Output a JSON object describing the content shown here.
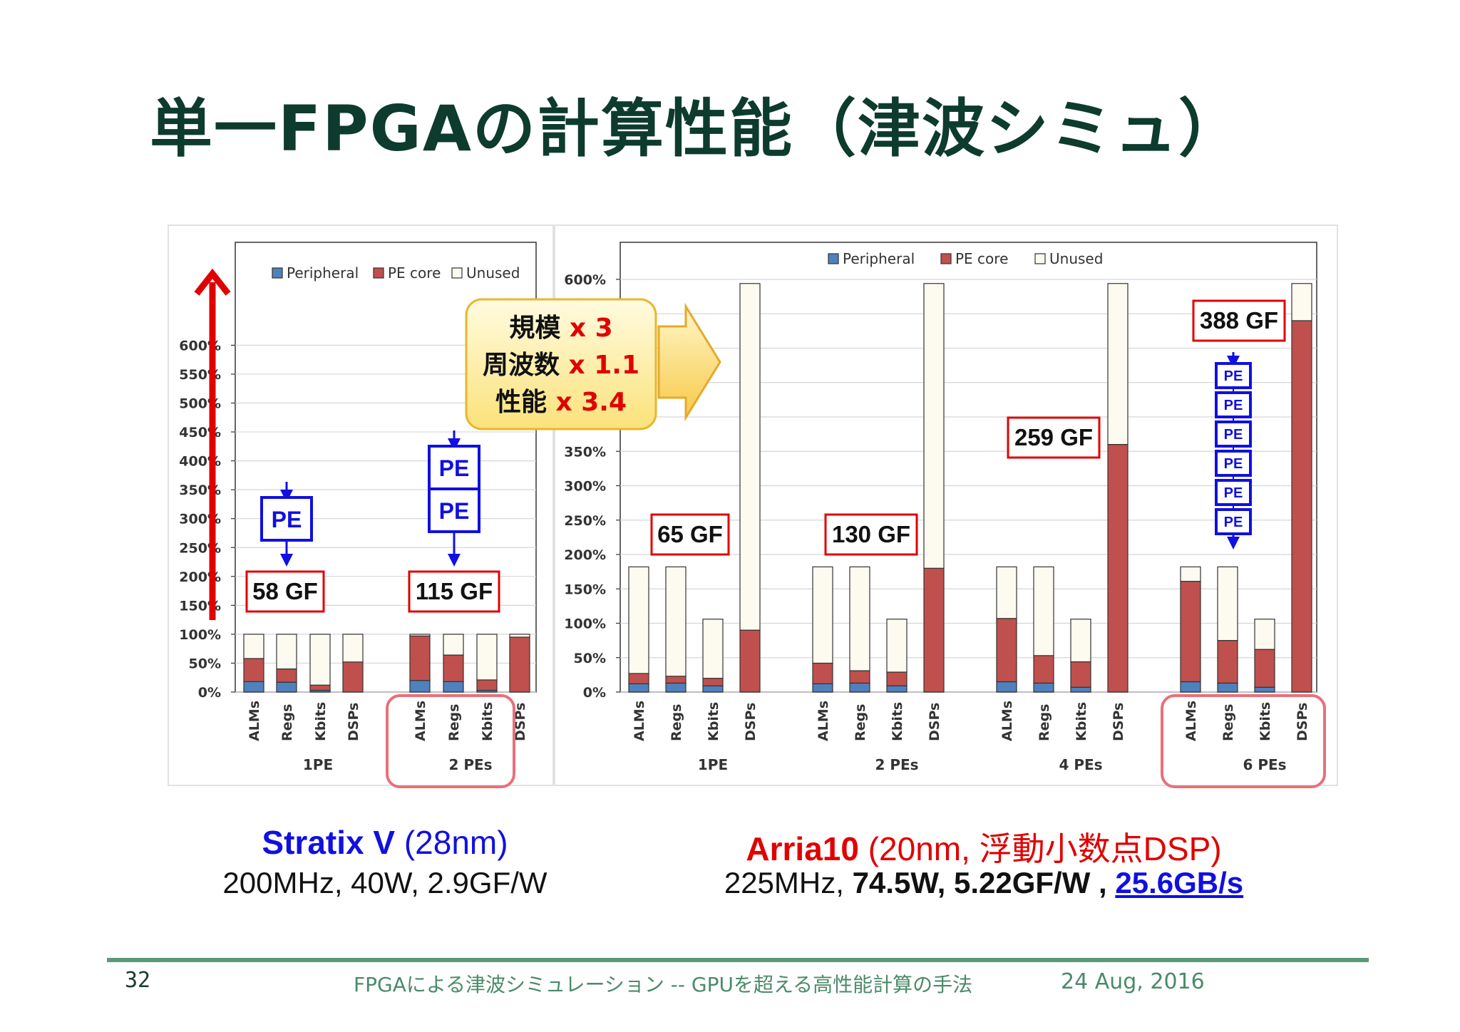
{
  "slide": {
    "title": "単一FPGAの計算性能（津波シミュ）",
    "page_number": "32",
    "footer_text": "FPGAによる津波シミュレーション -- GPUを超える高性能計算の手法",
    "footer_date": "24 Aug, 2016"
  },
  "captions": {
    "left": {
      "name": "Stratix V",
      "process": "(28nm)",
      "specs": "200MHz, 40W, 2.9GF/W"
    },
    "right": {
      "name": "Arria10",
      "process": "(20nm, 浮動小数点DSP)",
      "specs_plain": "225MHz, ",
      "specs_bold": "74.5W, 5.22GF/W , ",
      "bandwidth": "25.6GB/s"
    }
  },
  "callout": {
    "lines": [
      {
        "label": "規模",
        "value": "x 3"
      },
      {
        "label": "周波数",
        "value": "x 1.1"
      },
      {
        "label": "性能",
        "value": "x 3.4"
      }
    ]
  },
  "pe_label": "PE",
  "colors": {
    "peripheral": "#4f81bd",
    "pe_core": "#c0504d",
    "unused": "#fdfaf0",
    "title": "#0d3b2e",
    "blue_text": "#1010e0",
    "red_text": "#e00000"
  },
  "chart_data": [
    {
      "type": "bar",
      "stacked": true,
      "device": "Stratix V",
      "ylim": [
        0,
        600
      ],
      "yticks": [
        "0%",
        "50%",
        "100%",
        "150%",
        "200%",
        "250%",
        "300%",
        "350%",
        "400%",
        "450%",
        "500%",
        "550%",
        "600%"
      ],
      "legend": [
        "Peripheral",
        "PE core",
        "Unused"
      ],
      "legend_position": "top-right",
      "grid": true,
      "groups": [
        {
          "label": "1PE",
          "performance": "58 GF",
          "pe_count": 1,
          "bars": [
            {
              "name": "ALMs",
              "peripheral": 18,
              "pe_core": 40,
              "unused": 42
            },
            {
              "name": "Regs",
              "peripheral": 17,
              "pe_core": 23,
              "unused": 60
            },
            {
              "name": "Kbits",
              "peripheral": 3,
              "pe_core": 9,
              "unused": 88
            },
            {
              "name": "DSPs",
              "peripheral": 0,
              "pe_core": 52,
              "unused": 48
            }
          ]
        },
        {
          "label": "2 PEs",
          "performance": "115 GF",
          "pe_count": 2,
          "highlighted": true,
          "bars": [
            {
              "name": "ALMs",
              "peripheral": 20,
              "pe_core": 77,
              "unused": 3
            },
            {
              "name": "Regs",
              "peripheral": 18,
              "pe_core": 46,
              "unused": 36
            },
            {
              "name": "Kbits",
              "peripheral": 3,
              "pe_core": 18,
              "unused": 79
            },
            {
              "name": "DSPs",
              "peripheral": 0,
              "pe_core": 95,
              "unused": 5
            }
          ]
        }
      ]
    },
    {
      "type": "bar",
      "stacked": true,
      "device": "Arria10",
      "ylim": [
        0,
        600
      ],
      "yticks": [
        "0%",
        "50%",
        "100%",
        "150%",
        "200%",
        "250%",
        "300%",
        "350%",
        "400%",
        "450%",
        "500%",
        "550%",
        "600%"
      ],
      "legend": [
        "Peripheral",
        "PE core",
        "Unused"
      ],
      "legend_position": "top",
      "grid": true,
      "groups": [
        {
          "label": "1PE",
          "performance": "65 GF",
          "pe_count": 1,
          "bars": [
            {
              "name": "ALMs",
              "peripheral": 12,
              "pe_core": 15,
              "unused": 155
            },
            {
              "name": "Regs",
              "peripheral": 13,
              "pe_core": 10,
              "unused": 159
            },
            {
              "name": "Kbits",
              "peripheral": 9,
              "pe_core": 11,
              "unused": 86
            },
            {
              "name": "DSPs",
              "peripheral": 0,
              "pe_core": 90,
              "unused": 504
            }
          ]
        },
        {
          "label": "2 PEs",
          "performance": "130 GF",
          "pe_count": 2,
          "bars": [
            {
              "name": "ALMs",
              "peripheral": 12,
              "pe_core": 30,
              "unused": 140
            },
            {
              "name": "Regs",
              "peripheral": 13,
              "pe_core": 18,
              "unused": 151
            },
            {
              "name": "Kbits",
              "peripheral": 9,
              "pe_core": 20,
              "unused": 77
            },
            {
              "name": "DSPs",
              "peripheral": 0,
              "pe_core": 180,
              "unused": 414
            }
          ]
        },
        {
          "label": "4 PEs",
          "performance": "259 GF",
          "pe_count": 4,
          "bars": [
            {
              "name": "ALMs",
              "peripheral": 15,
              "pe_core": 92,
              "unused": 75
            },
            {
              "name": "Regs",
              "peripheral": 13,
              "pe_core": 40,
              "unused": 129
            },
            {
              "name": "Kbits",
              "peripheral": 7,
              "pe_core": 37,
              "unused": 62
            },
            {
              "name": "DSPs",
              "peripheral": 0,
              "pe_core": 360,
              "unused": 234
            }
          ]
        },
        {
          "label": "6 PEs",
          "performance": "388 GF",
          "pe_count": 6,
          "highlighted": true,
          "bars": [
            {
              "name": "ALMs",
              "peripheral": 15,
              "pe_core": 146,
              "unused": 21
            },
            {
              "name": "Regs",
              "peripheral": 13,
              "pe_core": 62,
              "unused": 107
            },
            {
              "name": "Kbits",
              "peripheral": 7,
              "pe_core": 55,
              "unused": 44
            },
            {
              "name": "DSPs",
              "peripheral": 0,
              "pe_core": 540,
              "unused": 54
            }
          ]
        }
      ]
    }
  ]
}
